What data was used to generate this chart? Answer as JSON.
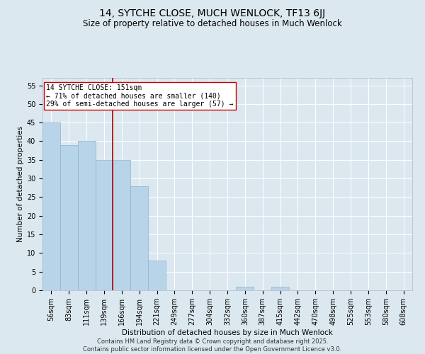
{
  "title": "14, SYTCHE CLOSE, MUCH WENLOCK, TF13 6JJ",
  "subtitle": "Size of property relative to detached houses in Much Wenlock",
  "xlabel": "Distribution of detached houses by size in Much Wenlock",
  "ylabel": "Number of detached properties",
  "categories": [
    "56sqm",
    "83sqm",
    "111sqm",
    "139sqm",
    "166sqm",
    "194sqm",
    "221sqm",
    "249sqm",
    "277sqm",
    "304sqm",
    "332sqm",
    "360sqm",
    "387sqm",
    "415sqm",
    "442sqm",
    "470sqm",
    "498sqm",
    "525sqm",
    "553sqm",
    "580sqm",
    "608sqm"
  ],
  "values": [
    45,
    39,
    40,
    35,
    35,
    28,
    8,
    0,
    0,
    0,
    0,
    1,
    0,
    1,
    0,
    0,
    0,
    0,
    0,
    0,
    0
  ],
  "bar_color": "#b8d4e8",
  "bar_edge_color": "#8ab4d0",
  "vline_x_index": 4,
  "vline_color": "#aa0000",
  "annotation_text": "14 SYTCHE CLOSE: 151sqm\n← 71% of detached houses are smaller (140)\n29% of semi-detached houses are larger (57) →",
  "annotation_box_color": "#ffffff",
  "annotation_box_edge": "#cc0000",
  "ylim": [
    0,
    57
  ],
  "yticks": [
    0,
    5,
    10,
    15,
    20,
    25,
    30,
    35,
    40,
    45,
    50,
    55
  ],
  "bg_color": "#dce8f0",
  "grid_color": "#ffffff",
  "footer": "Contains HM Land Registry data © Crown copyright and database right 2025.\nContains public sector information licensed under the Open Government Licence v3.0.",
  "title_fontsize": 10,
  "subtitle_fontsize": 8.5,
  "axis_label_fontsize": 7.5,
  "tick_fontsize": 7,
  "annotation_fontsize": 7,
  "footer_fontsize": 6
}
